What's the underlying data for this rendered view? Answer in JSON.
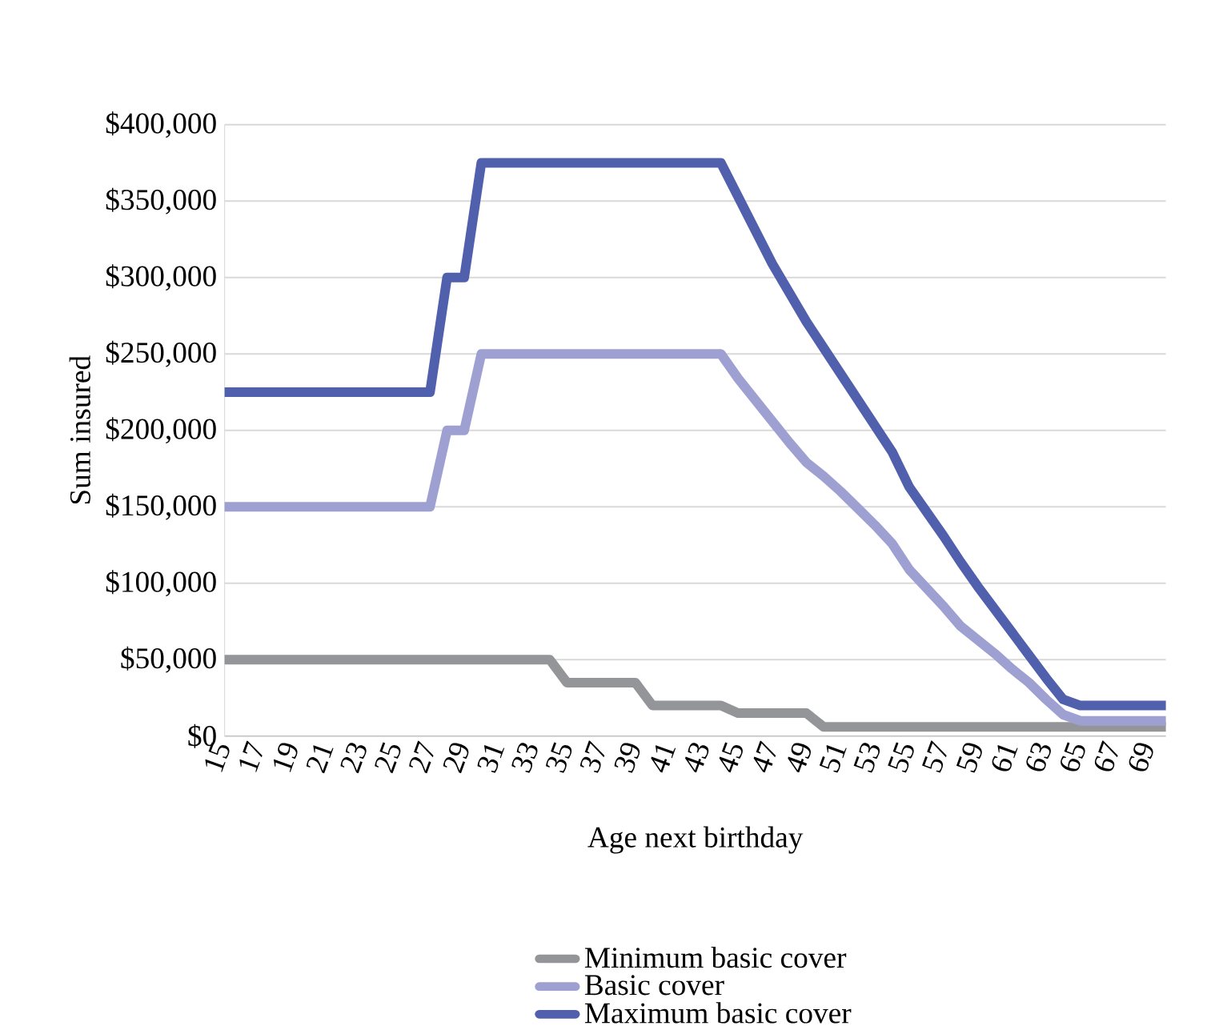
{
  "chart_data": {
    "type": "line",
    "xlabel": "Age next birthday",
    "ylabel": "Sum insured",
    "x": [
      15,
      16,
      17,
      18,
      19,
      20,
      21,
      22,
      23,
      24,
      25,
      26,
      27,
      28,
      29,
      30,
      31,
      32,
      33,
      34,
      35,
      36,
      37,
      38,
      39,
      40,
      41,
      42,
      43,
      44,
      45,
      46,
      47,
      48,
      49,
      50,
      51,
      52,
      53,
      54,
      55,
      56,
      57,
      58,
      59,
      60,
      61,
      62,
      63,
      64,
      65,
      66,
      67,
      68,
      69,
      70
    ],
    "series": [
      {
        "name": "Minimum basic cover",
        "color": "#939598",
        "values": [
          50000,
          50000,
          50000,
          50000,
          50000,
          50000,
          50000,
          50000,
          50000,
          50000,
          50000,
          50000,
          50000,
          50000,
          50000,
          50000,
          50000,
          50000,
          50000,
          50000,
          35000,
          35000,
          35000,
          35000,
          35000,
          20000,
          20000,
          20000,
          20000,
          20000,
          15000,
          15000,
          15000,
          15000,
          15000,
          6000,
          6000,
          6000,
          6000,
          6000,
          6000,
          6000,
          6000,
          6000,
          6000,
          6000,
          6000,
          6000,
          6000,
          6000,
          6000,
          6000,
          6000,
          6000,
          6000,
          6000
        ]
      },
      {
        "name": "Basic cover",
        "color": "#9fa0d2",
        "values": [
          150000,
          150000,
          150000,
          150000,
          150000,
          150000,
          150000,
          150000,
          150000,
          150000,
          150000,
          150000,
          150000,
          200000,
          200000,
          250000,
          250000,
          250000,
          250000,
          250000,
          250000,
          250000,
          250000,
          250000,
          250000,
          250000,
          250000,
          250000,
          250000,
          250000,
          234000,
          220000,
          206000,
          192000,
          179000,
          170000,
          160000,
          149000,
          138000,
          126000,
          109000,
          97000,
          85000,
          72000,
          63000,
          54000,
          44000,
          35000,
          24000,
          14000,
          10000,
          10000,
          10000,
          10000,
          10000,
          10000
        ]
      },
      {
        "name": "Maximum basic cover",
        "color": "#5060ad",
        "values": [
          225000,
          225000,
          225000,
          225000,
          225000,
          225000,
          225000,
          225000,
          225000,
          225000,
          225000,
          225000,
          225000,
          300000,
          300000,
          375000,
          375000,
          375000,
          375000,
          375000,
          375000,
          375000,
          375000,
          375000,
          375000,
          375000,
          375000,
          375000,
          375000,
          375000,
          353000,
          331000,
          309000,
          290000,
          271000,
          254000,
          237000,
          220000,
          203000,
          186000,
          163000,
          147000,
          131000,
          114000,
          98000,
          83000,
          68000,
          53000,
          38000,
          24000,
          20000,
          20000,
          20000,
          20000,
          20000,
          20000
        ]
      }
    ],
    "xlim": [
      15,
      70
    ],
    "xticks": [
      15,
      17,
      19,
      21,
      23,
      25,
      27,
      29,
      31,
      33,
      35,
      37,
      39,
      41,
      43,
      45,
      47,
      49,
      51,
      53,
      55,
      57,
      59,
      61,
      63,
      65,
      67,
      69
    ],
    "ylim": [
      0,
      400000
    ],
    "yticks": [
      {
        "value": 0,
        "label": "$0"
      },
      {
        "value": 50000,
        "label": "$50,000"
      },
      {
        "value": 100000,
        "label": "$100,000"
      },
      {
        "value": 150000,
        "label": "$150,000"
      },
      {
        "value": 200000,
        "label": "$200,000"
      },
      {
        "value": 250000,
        "label": "$250,000"
      },
      {
        "value": 300000,
        "label": "$300,000"
      },
      {
        "value": 350000,
        "label": "$350,000"
      },
      {
        "value": 400000,
        "label": "$400,000"
      }
    ],
    "grid": "y",
    "legend": "bottom",
    "marker": "none",
    "line_style": "solid"
  }
}
